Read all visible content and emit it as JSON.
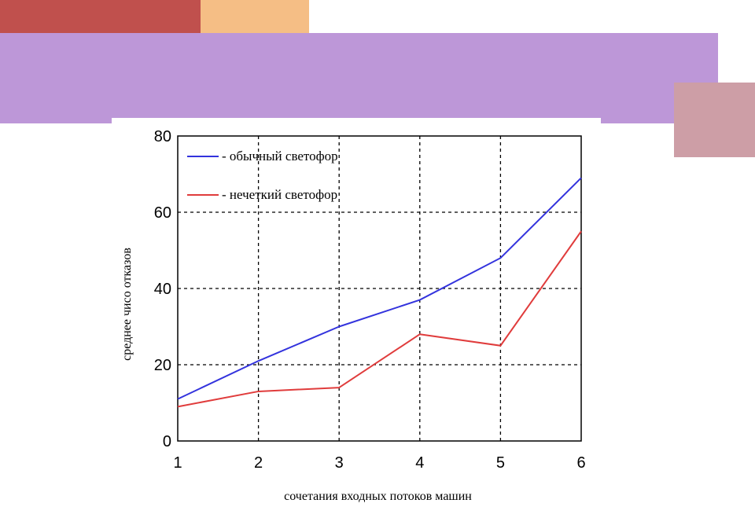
{
  "decor": {
    "red": "#c0504d",
    "peach": "#f5be85",
    "purple": "#bd97d8",
    "pink": "#cd9ea6"
  },
  "chart_data": {
    "type": "line",
    "x": [
      1,
      2,
      3,
      4,
      5,
      6
    ],
    "xlabel": "сочетания входных потоков машин",
    "ylabel": "среднее чисо отказов",
    "xlim": [
      1,
      6
    ],
    "ylim": [
      0,
      80
    ],
    "xticks": [
      "1",
      "2",
      "3",
      "4",
      "5",
      "6"
    ],
    "yticks": [
      "0",
      "20",
      "40",
      "60",
      "80"
    ],
    "grid": true,
    "legend_position": "top-left",
    "series": [
      {
        "name": "- обычный светофор",
        "color": "#3333dd",
        "values": [
          11,
          21,
          30,
          37,
          48,
          69
        ]
      },
      {
        "name": "- нечеткий светофор",
        "color": "#e03c3c",
        "values": [
          9,
          13,
          14,
          28,
          25,
          55
        ]
      }
    ]
  }
}
